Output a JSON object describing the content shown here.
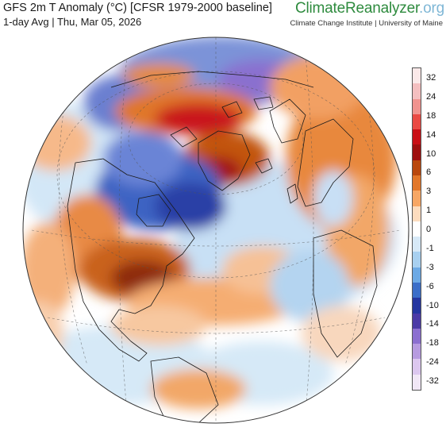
{
  "header": {
    "title": "GFS 2m T Anomaly (°C) [CFSR 1979-2000 baseline]",
    "subtitle": "1-day Avg | Thu, Mar 05, 2026"
  },
  "brand": {
    "part1": "Climate",
    "part2": "Reanalyzer",
    "part3": ".org",
    "tagline": "Climate Change Institute | University of Maine"
  },
  "map": {
    "type": "orthographic globe centered on the North Atlantic / Arctic",
    "ocean_color": "#ffffff",
    "warm_anomaly_regions": [
      "eastern United States",
      "Greenland",
      "Barents Sea / northern Siberia coast",
      "Eastern Europe",
      "subtropical North Atlantic",
      "Western Europe"
    ],
    "cold_anomaly_regions": [
      "Canadian Arctic / Hudson Bay",
      "Labrador Sea",
      "northern Siberia interior",
      "eastern Atlantic near Europe",
      "Mediterranean"
    ]
  },
  "legend": {
    "ticks": [
      "32",
      "24",
      "18",
      "14",
      "10",
      "6",
      "3",
      "1",
      "0",
      "-1",
      "-3",
      "-6",
      "-10",
      "-14",
      "-18",
      "-24",
      "-32"
    ],
    "colors": [
      "#fbe9e9",
      "#f4bfc0",
      "#f0938f",
      "#ea4a44",
      "#c90f16",
      "#9e0f0f",
      "#b9480e",
      "#e2772a",
      "#f7a765",
      "#fcdcbf",
      "#ffffff",
      "#d7e9f7",
      "#a8d0f0",
      "#6ca9e5",
      "#3b6ec8",
      "#2536a0",
      "#4b3aa6",
      "#8c6fd0",
      "#b79be0",
      "#dcc7ef",
      "#f1e7f6"
    ]
  }
}
